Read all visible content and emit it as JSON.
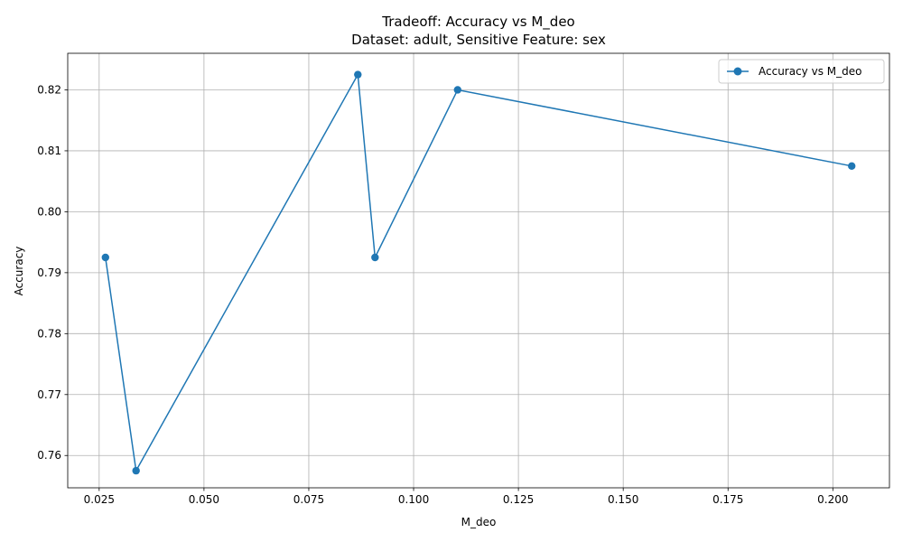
{
  "chart_data": {
    "type": "line",
    "title": "Tradeoff: Accuracy vs M_deo",
    "subtitle": "Dataset: adult, Sensitive Feature: sex",
    "xlabel": "M_deo",
    "ylabel": "Accuracy",
    "xlim": [
      0.0175,
      0.2135
    ],
    "ylim": [
      0.7547,
      0.826
    ],
    "xticks": [
      0.025,
      0.05,
      0.075,
      0.1,
      0.125,
      0.15,
      0.175,
      0.2
    ],
    "xtick_labels": [
      "0.025",
      "0.050",
      "0.075",
      "0.100",
      "0.125",
      "0.150",
      "0.175",
      "0.200"
    ],
    "yticks": [
      0.76,
      0.77,
      0.78,
      0.79,
      0.8,
      0.81,
      0.82
    ],
    "ytick_labels": [
      "0.76",
      "0.77",
      "0.78",
      "0.79",
      "0.80",
      "0.81",
      "0.82"
    ],
    "grid": true,
    "legend_position": "top-right",
    "series": [
      {
        "name": "Accuracy vs M_deo",
        "color": "#1f77b4",
        "marker": "circle",
        "x": [
          0.0265,
          0.0338,
          0.0867,
          0.0908,
          0.1105,
          0.2045
        ],
        "y": [
          0.7925,
          0.7575,
          0.8225,
          0.7925,
          0.82,
          0.8075
        ]
      }
    ]
  }
}
